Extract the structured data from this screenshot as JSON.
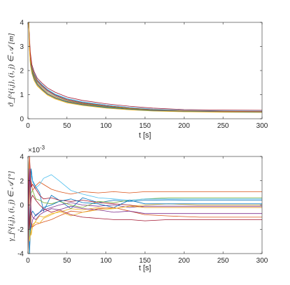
{
  "chart_data": [
    {
      "type": "line",
      "xlabel": "t [s]",
      "ylabel": "ϑ_f^{i,j}, (i, j) ∈ 𝒜 [m]",
      "xlim": [
        0,
        300
      ],
      "ylim": [
        0,
        4
      ],
      "xticks": [
        "0",
        "50",
        "100",
        "150",
        "200",
        "250",
        "300"
      ],
      "yticks": [
        "0",
        "1",
        "2",
        "3",
        "4"
      ],
      "grid": false,
      "series": [
        {
          "color": "#0072BD",
          "x": [
            0,
            1,
            2,
            3,
            5,
            8,
            12,
            18,
            25,
            35,
            50,
            70,
            100,
            130,
            160,
            200,
            250,
            300
          ],
          "y": [
            4,
            4,
            3.2,
            2.6,
            2.15,
            1.85,
            1.6,
            1.4,
            1.2,
            1.0,
            0.83,
            0.68,
            0.55,
            0.45,
            0.38,
            0.34,
            0.32,
            0.31
          ]
        },
        {
          "color": "#D95319",
          "x": [
            0,
            1,
            2,
            3,
            5,
            8,
            12,
            18,
            25,
            35,
            50,
            70,
            100,
            130,
            160,
            200,
            250,
            300
          ],
          "y": [
            4,
            4,
            3.0,
            2.4,
            2.0,
            1.7,
            1.45,
            1.25,
            1.05,
            0.88,
            0.72,
            0.6,
            0.48,
            0.4,
            0.34,
            0.3,
            0.29,
            0.28
          ]
        },
        {
          "color": "#EDB120",
          "x": [
            0,
            1,
            2,
            3,
            5,
            8,
            12,
            18,
            25,
            35,
            50,
            70,
            100,
            130,
            160,
            200,
            250,
            300
          ],
          "y": [
            4,
            4,
            2.9,
            2.3,
            1.9,
            1.6,
            1.38,
            1.2,
            1.0,
            0.84,
            0.68,
            0.56,
            0.46,
            0.38,
            0.33,
            0.3,
            0.28,
            0.27
          ]
        },
        {
          "color": "#7E2F8E",
          "x": [
            0,
            1,
            2,
            3,
            5,
            8,
            12,
            18,
            25,
            35,
            50,
            70,
            100,
            130,
            160,
            200,
            250,
            300
          ],
          "y": [
            4,
            4,
            3.1,
            2.5,
            2.1,
            1.8,
            1.55,
            1.35,
            1.15,
            0.96,
            0.78,
            0.64,
            0.52,
            0.43,
            0.36,
            0.32,
            0.3,
            0.29
          ]
        },
        {
          "color": "#77AC30",
          "x": [
            0,
            1,
            2,
            3,
            5,
            8,
            12,
            18,
            25,
            35,
            50,
            70,
            100,
            130,
            160,
            200,
            250,
            300
          ],
          "y": [
            4,
            4,
            3.05,
            2.45,
            2.05,
            1.75,
            1.5,
            1.3,
            1.1,
            0.92,
            0.75,
            0.62,
            0.5,
            0.42,
            0.36,
            0.32,
            0.3,
            0.29
          ]
        },
        {
          "color": "#4DBEEE",
          "x": [
            0,
            1,
            2,
            3,
            5,
            8,
            12,
            18,
            25,
            35,
            50,
            70,
            100,
            130,
            160,
            200,
            250,
            300
          ],
          "y": [
            4,
            4,
            3.25,
            2.65,
            2.2,
            1.9,
            1.62,
            1.42,
            1.22,
            1.02,
            0.84,
            0.7,
            0.57,
            0.47,
            0.4,
            0.35,
            0.33,
            0.32
          ]
        },
        {
          "color": "#A2142F",
          "x": [
            0,
            1,
            2,
            3,
            5,
            8,
            12,
            18,
            25,
            35,
            50,
            70,
            100,
            130,
            160,
            200,
            250,
            300
          ],
          "y": [
            4,
            4,
            3.35,
            2.75,
            2.25,
            1.95,
            1.68,
            1.48,
            1.28,
            1.1,
            0.9,
            0.76,
            0.62,
            0.52,
            0.44,
            0.38,
            0.36,
            0.35
          ]
        },
        {
          "color": "#0072BD",
          "x": [
            0,
            1,
            2,
            3,
            5,
            8,
            12,
            18,
            25,
            35,
            50,
            70,
            100,
            130,
            160,
            200,
            250,
            300
          ],
          "y": [
            4,
            4,
            2.95,
            2.35,
            1.95,
            1.65,
            1.42,
            1.22,
            1.03,
            0.86,
            0.7,
            0.58,
            0.47,
            0.39,
            0.34,
            0.3,
            0.29,
            0.28
          ]
        },
        {
          "color": "#D95319",
          "x": [
            0,
            1,
            2,
            3,
            5,
            8,
            12,
            18,
            25,
            35,
            50,
            70,
            100,
            130,
            160,
            200,
            250,
            300
          ],
          "y": [
            4,
            4,
            3.15,
            2.55,
            2.12,
            1.82,
            1.58,
            1.37,
            1.18,
            0.98,
            0.8,
            0.66,
            0.54,
            0.44,
            0.37,
            0.33,
            0.31,
            0.3
          ]
        },
        {
          "color": "#EDB120",
          "x": [
            0,
            1,
            2,
            3,
            5,
            8,
            12,
            18,
            25,
            35,
            50,
            70,
            100,
            130,
            160,
            200,
            250,
            300
          ],
          "y": [
            4,
            4,
            2.85,
            2.25,
            1.88,
            1.58,
            1.35,
            1.17,
            0.98,
            0.82,
            0.66,
            0.55,
            0.44,
            0.37,
            0.32,
            0.29,
            0.27,
            0.26
          ]
        }
      ]
    },
    {
      "type": "line",
      "xlabel": "t [s]",
      "ylabel": "γ_f^{i,j}, (i, j) ∈ 𝒜 [°]",
      "xlim": [
        0,
        300
      ],
      "ylim": [
        -0.004,
        0.004
      ],
      "xticks": [
        "0",
        "50",
        "100",
        "150",
        "200",
        "250",
        "300"
      ],
      "yticks": [
        "-4",
        "-2",
        "0",
        "2",
        "4"
      ],
      "exponent_label": "×10",
      "exponent_power": "-3",
      "grid": false,
      "series": [
        {
          "color": "#0072BD",
          "x": [
            0,
            2,
            4,
            6,
            10,
            15,
            20,
            30,
            40,
            55,
            70,
            90,
            110,
            130,
            150,
            180,
            220,
            260,
            300
          ],
          "y": [
            0.004,
            -0.002,
            0.003,
            0.002,
            0.0015,
            0.001,
            -0.0005,
            0.0008,
            0.0004,
            -0.0003,
            0.0006,
            0.0002,
            0.0004,
            0.0003,
            0.0004,
            0.00042,
            0.0004,
            0.00041,
            0.0004
          ]
        },
        {
          "color": "#D95319",
          "x": [
            0,
            2,
            4,
            6,
            10,
            15,
            20,
            30,
            40,
            55,
            70,
            90,
            110,
            130,
            150,
            180,
            220,
            260,
            300
          ],
          "y": [
            0.004,
            -0.003,
            0.002,
            0.0012,
            0.0016,
            0.0019,
            0.0017,
            0.0013,
            0.0011,
            0.0009,
            0.0011,
            0.001,
            0.0011,
            0.001,
            0.0011,
            0.0011,
            0.0011,
            0.0011,
            0.0011
          ]
        },
        {
          "color": "#EDB120",
          "x": [
            0,
            2,
            4,
            6,
            10,
            15,
            20,
            30,
            40,
            55,
            70,
            90,
            110,
            130,
            150,
            180,
            220,
            260,
            300
          ],
          "y": [
            -0.004,
            0.002,
            -0.0025,
            -0.0018,
            -0.0013,
            -0.0009,
            -0.001,
            -0.0007,
            -0.0006,
            -0.0003,
            -0.0004,
            -0.0002,
            -0.0003,
            -0.0001,
            0.0,
            0.0001,
            0.0,
            0.0,
            0.0
          ]
        },
        {
          "color": "#7E2F8E",
          "x": [
            0,
            2,
            4,
            6,
            10,
            15,
            20,
            30,
            40,
            55,
            70,
            90,
            110,
            130,
            150,
            180,
            220,
            260,
            300
          ],
          "y": [
            -0.004,
            0.003,
            -0.002,
            -0.0012,
            -0.0008,
            -0.0006,
            -0.0004,
            -0.0002,
            0.0,
            0.0002,
            0.0,
            -0.0001,
            0.0,
            -0.0002,
            -0.0001,
            -0.0001,
            -0.0001,
            -0.0001,
            -0.0001
          ]
        },
        {
          "color": "#77AC30",
          "x": [
            0,
            2,
            4,
            6,
            10,
            15,
            20,
            30,
            40,
            55,
            70,
            90,
            110,
            130,
            150,
            180,
            220,
            260,
            300
          ],
          "y": [
            0.003,
            -0.004,
            0.001,
            0.0012,
            0.0005,
            0.0004,
            0.0002,
            0.0001,
            0.0003,
            0.0,
            -0.0002,
            0.0003,
            0.0002,
            0.0004,
            0.0005,
            0.0006,
            0.0006,
            0.0006,
            0.0006
          ]
        },
        {
          "color": "#4DBEEE",
          "x": [
            0,
            2,
            4,
            6,
            10,
            15,
            20,
            30,
            40,
            55,
            70,
            90,
            110,
            130,
            150,
            180,
            220,
            260,
            300
          ],
          "y": [
            0.004,
            -0.0035,
            0.0025,
            0.0019,
            0.0014,
            0.0017,
            0.0022,
            0.0025,
            0.002,
            0.0012,
            0.0009,
            0.0006,
            0.0005,
            0.0004,
            0.0005,
            0.0005,
            0.0005,
            0.0005,
            0.0005
          ]
        },
        {
          "color": "#A2142F",
          "x": [
            0,
            2,
            4,
            6,
            10,
            15,
            20,
            30,
            40,
            55,
            70,
            90,
            110,
            130,
            150,
            180,
            220,
            260,
            300
          ],
          "y": [
            -0.004,
            0.004,
            0.0015,
            0.0017,
            0.0013,
            0.0008,
            0.0005,
            0.0006,
            0.0004,
            0.0003,
            0.0004,
            0.0002,
            0.0001,
            0.0,
            -0.0002,
            -0.0002,
            -0.0002,
            -0.0002,
            -0.0002
          ]
        },
        {
          "color": "#0072BD",
          "x": [
            0,
            2,
            4,
            6,
            10,
            15,
            20,
            30,
            40,
            55,
            70,
            90,
            110,
            130,
            150,
            180,
            220,
            260,
            300
          ],
          "y": [
            0.004,
            -0.004,
            -0.0008,
            -0.0005,
            -0.0009,
            -0.0006,
            -0.0002,
            0.0,
            0.0003,
            0.0005,
            0.0002,
            0.0001,
            -0.0002,
            0.0004,
            0.0001,
            0.0001,
            0.0001,
            0.0001,
            0.0001
          ]
        },
        {
          "color": "#D95319",
          "x": [
            0,
            2,
            4,
            6,
            10,
            15,
            20,
            30,
            40,
            55,
            70,
            90,
            110,
            130,
            150,
            180,
            220,
            260,
            300
          ],
          "y": [
            -0.004,
            0.004,
            -0.0015,
            -0.0018,
            -0.0016,
            -0.0015,
            -0.0014,
            -0.0012,
            -0.0009,
            -0.0005,
            -0.0006,
            -0.0003,
            -0.0002,
            -0.0005,
            -0.0008,
            -0.0009,
            -0.001,
            -0.001,
            -0.001
          ]
        },
        {
          "color": "#EDB120",
          "x": [
            0,
            2,
            4,
            6,
            10,
            15,
            20,
            30,
            40,
            55,
            70,
            90,
            110,
            130,
            150,
            180,
            220,
            260,
            300
          ],
          "y": [
            0.004,
            -0.003,
            -0.002,
            -0.0016,
            -0.0014,
            -0.0015,
            -0.0011,
            -0.0008,
            -0.0005,
            -0.0009,
            -0.0006,
            -0.0004,
            -0.0003,
            -0.0001,
            -0.0002,
            -0.0002,
            -0.0002,
            -0.0002,
            -0.0002
          ]
        },
        {
          "color": "#7E2F8E",
          "x": [
            0,
            2,
            4,
            6,
            10,
            15,
            20,
            30,
            40,
            55,
            70,
            90,
            110,
            130,
            150,
            180,
            220,
            260,
            300
          ],
          "y": [
            -0.003,
            0.003,
            -0.0005,
            -0.001,
            -0.0012,
            -0.0008,
            -0.0006,
            -0.0003,
            -0.0004,
            -0.0001,
            -0.0003,
            -0.0004,
            -0.0006,
            -0.0005,
            -0.0007,
            -0.0007,
            -0.0007,
            -0.0007,
            -0.0007
          ]
        },
        {
          "color": "#A2142F",
          "x": [
            0,
            2,
            4,
            6,
            10,
            15,
            20,
            30,
            40,
            55,
            70,
            90,
            110,
            130,
            150,
            180,
            220,
            260,
            300
          ],
          "y": [
            0.003,
            -0.002,
            0.0005,
            0.0008,
            0.0004,
            0.0,
            -0.0003,
            -0.0006,
            -0.0004,
            -0.0008,
            -0.001,
            -0.0011,
            -0.0012,
            -0.0012,
            -0.0013,
            -0.0012,
            -0.0012,
            -0.0012,
            -0.0012
          ]
        }
      ]
    }
  ]
}
